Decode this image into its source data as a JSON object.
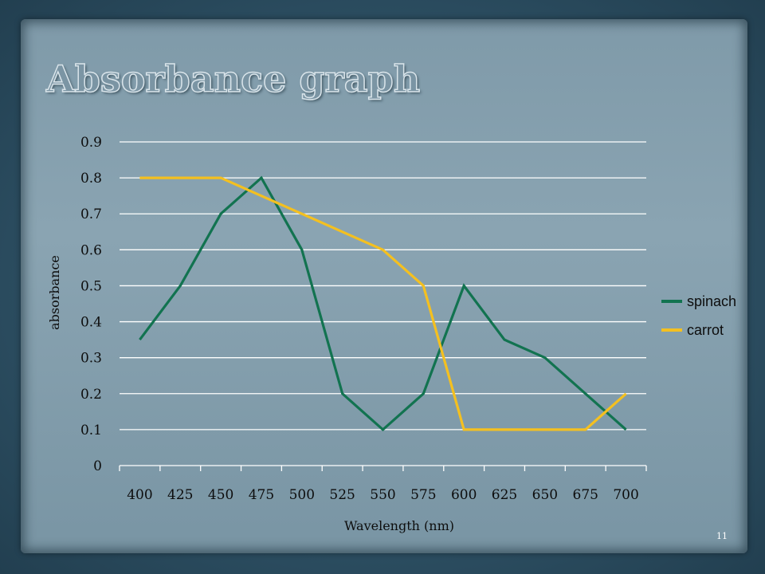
{
  "slide": {
    "title": "Absorbance graph",
    "page_number": "11"
  },
  "colors": {
    "spinach": "#127350",
    "carrot": "#f4c020",
    "grid": "#ffffff"
  },
  "chart_data": {
    "type": "line",
    "title": "",
    "xlabel": "Wavelength (nm)",
    "ylabel": "absorbance",
    "x": [
      "400",
      "425",
      "450",
      "475",
      "500",
      "525",
      "550",
      "575",
      "600",
      "625",
      "650",
      "675",
      "700"
    ],
    "y_ticks": [
      "0",
      "0.1",
      "0.2",
      "0.3",
      "0.4",
      "0.5",
      "0.6",
      "0.7",
      "0.8",
      "0.9"
    ],
    "ylim": [
      0,
      0.9
    ],
    "grid": true,
    "legend_position": "right",
    "series": [
      {
        "name": "spinach",
        "color": "#127350",
        "values": [
          0.35,
          0.5,
          0.7,
          0.8,
          0.6,
          0.2,
          0.1,
          0.2,
          0.5,
          0.35,
          0.3,
          0.2,
          0.1
        ]
      },
      {
        "name": "carrot",
        "color": "#f4c020",
        "values": [
          0.8,
          0.8,
          0.8,
          0.75,
          0.7,
          0.65,
          0.6,
          0.5,
          0.1,
          0.1,
          0.1,
          0.1,
          0.2
        ]
      }
    ]
  }
}
